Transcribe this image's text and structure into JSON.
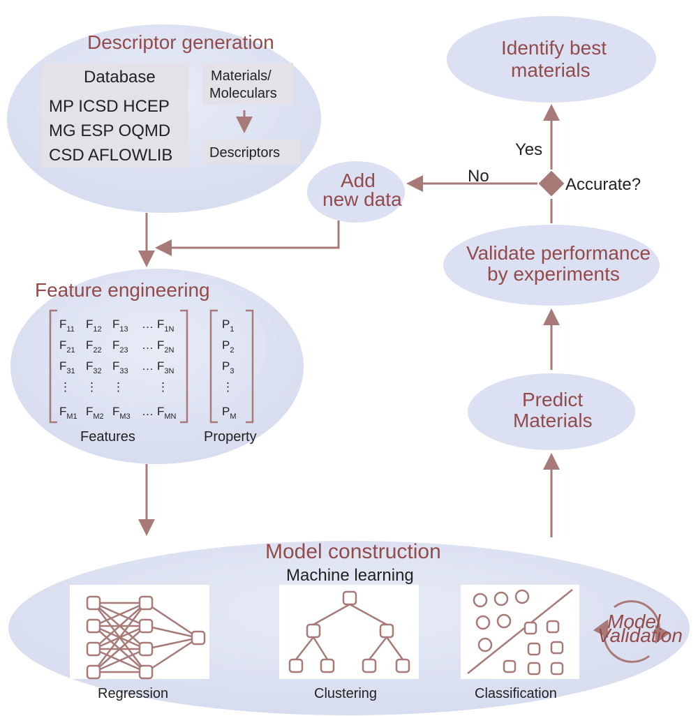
{
  "type": "flowchart",
  "colors": {
    "ellipse_fill": "#dbe0f2",
    "title_text": "#934a4a",
    "body_text": "#222222",
    "arrow": "#a77a78",
    "inner_box": "#e5e1e8",
    "icon_bg": "#ffffff"
  },
  "nodes": {
    "descriptor": {
      "title": "Descriptor generation",
      "database_label": "Database",
      "db_row1": "MP   ICSD   HCEP",
      "db_row2": "MG   ESP   OQMD",
      "db_row3": "CSD   AFLOWLIB",
      "mat_line1": "Materials/",
      "mat_line2": "Moleculars",
      "desc_label": "Descriptors"
    },
    "add_new_data": {
      "line1": "Add",
      "line2": "new data"
    },
    "feature_eng": {
      "title": "Feature engineering",
      "features_label": "Features",
      "property_label": "Property",
      "matrix_rows": [
        [
          "F",
          "11",
          "F",
          "12",
          "F",
          "13",
          "…",
          "F",
          "1N"
        ],
        [
          "F",
          "21",
          "F",
          "22",
          "F",
          "23",
          "…",
          "F",
          "2N"
        ],
        [
          "F",
          "31",
          "F",
          "32",
          "F",
          "33",
          "…",
          "F",
          "3N"
        ],
        [
          "⋮",
          "",
          "⋮",
          "",
          "⋮",
          "",
          "",
          "⋮",
          ""
        ],
        [
          "F",
          "M1",
          "F",
          "M2",
          "F",
          "M3",
          "…",
          "F",
          "MN"
        ]
      ],
      "prop_rows": [
        [
          "P",
          "1"
        ],
        [
          "P",
          "2"
        ],
        [
          "P",
          "3"
        ],
        [
          "⋮",
          ""
        ],
        [
          "P",
          "M"
        ]
      ]
    },
    "model": {
      "title": "Model construction",
      "subtitle": "Machine learning",
      "regression": "Regression",
      "clustering": "Clustering",
      "classification": "Classification",
      "model_val1": "Model",
      "model_val2": "Validation"
    },
    "predict": {
      "line1": "Predict",
      "line2": "Materials"
    },
    "validate": {
      "line1": "Validate performance",
      "line2": "by experiments"
    },
    "identify": {
      "line1": "Identify best",
      "line2": "materials"
    },
    "decision": {
      "label": "Accurate?",
      "yes": "Yes",
      "no": "No"
    }
  }
}
